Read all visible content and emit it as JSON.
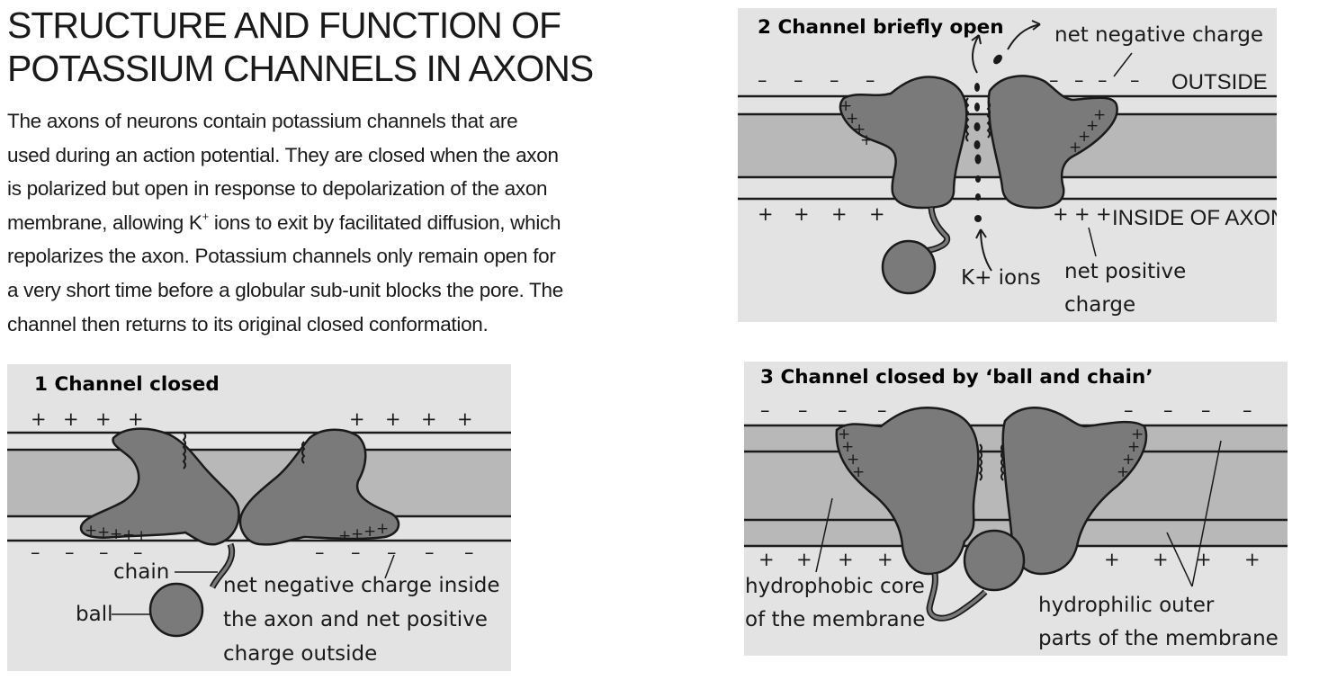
{
  "title": {
    "line1": "STRUCTURE AND FUNCTION OF",
    "line2": "POTASSIUM CHANNELS IN AXONS"
  },
  "intro": {
    "l1": "The axons of neurons contain potassium channels that are",
    "l2": "used during an action potential. They are closed when the axon",
    "l3": "is polarized but open in response to depolarization of the axon",
    "l4a": "membrane, allowing K",
    "l4sup": "+",
    "l4b": " ions to exit by facilitated diffusion, which",
    "l5": "repolarizes the axon. Potassium channels only remain open for",
    "l6": "a very short time before a globular sub-unit blocks the pore. The",
    "l7": "channel then returns to its original closed conformation."
  },
  "panel1": {
    "title": "1  Channel closed",
    "label_chain": "chain",
    "label_ball": "ball",
    "note_l1": "net negative charge inside",
    "note_l2": "the axon and net positive",
    "note_l3": "charge outside"
  },
  "panel2": {
    "title": "2  Channel briefly open",
    "label_net_negative": "net negative charge",
    "label_outside": "OUTSIDE",
    "label_inside": "INSIDE OF AXON",
    "label_ions": "K+ ions",
    "label_net_positive_l1": "net positive",
    "label_net_positive_l2": "charge"
  },
  "panel3": {
    "title": "3  Channel closed by ‘ball and chain’",
    "label_core_l1": "hydrophobic core",
    "label_core_l2": "of the membrane",
    "label_outer_l1": "hydrophilic outer",
    "label_outer_l2": "parts of the membrane"
  },
  "symbols": {
    "plus": "+",
    "minus": "–"
  },
  "colors": {
    "panel_bg": "#e3e3e3",
    "membrane_core": "#b8b8b8",
    "protein": "#7a7a7a",
    "outline": "#1a1a1a",
    "text": "#1a1a1a"
  }
}
